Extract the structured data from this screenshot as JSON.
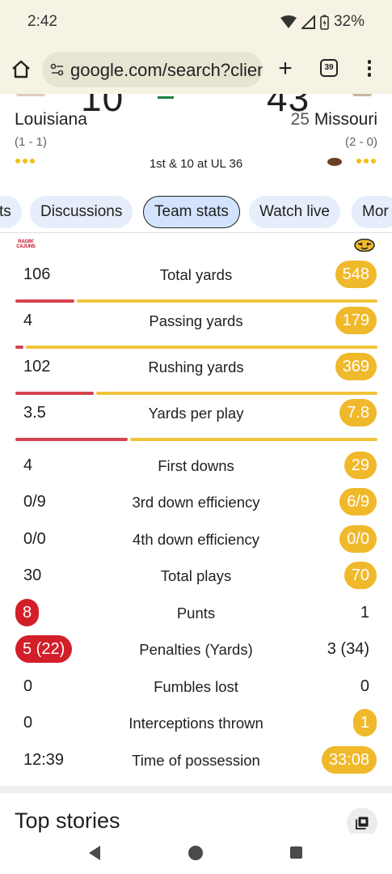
{
  "status_bar": {
    "time": "2:42",
    "battery": "32%"
  },
  "browser": {
    "url": "google.com/search?client",
    "tab_count": "39"
  },
  "scoreboard": {
    "home": {
      "name": "Louisiana",
      "record": "(1 - 1)",
      "score_partial": "10",
      "logo_text": "RAGIN' CAJUNS"
    },
    "away": {
      "rank": "25",
      "name": "Missouri",
      "record": "(2 - 0)",
      "score_partial": "43"
    },
    "situation": "1st & 10 at UL 36"
  },
  "tabs": [
    "ts",
    "Discussions",
    "Team stats",
    "Watch live",
    "Mor"
  ],
  "active_tab": "Team stats",
  "stats": [
    {
      "label": "Total yards",
      "left": "106",
      "right": "548",
      "highlight": "right",
      "bar_left_fraction": 0.162
    },
    {
      "label": "Passing yards",
      "left": "4",
      "right": "179",
      "highlight": "right",
      "bar_left_fraction": 0.022
    },
    {
      "label": "Rushing yards",
      "left": "102",
      "right": "369",
      "highlight": "right",
      "bar_left_fraction": 0.217
    },
    {
      "label": "Yards per play",
      "left": "3.5",
      "right": "7.8",
      "highlight": "right",
      "bar_left_fraction": 0.31
    },
    {
      "label": "First downs",
      "left": "4",
      "right": "29",
      "highlight": "right"
    },
    {
      "label": "3rd down efficiency",
      "left": "0/9",
      "right": "6/9",
      "highlight": "right"
    },
    {
      "label": "4th down efficiency",
      "left": "0/0",
      "right": "0/0",
      "highlight": "right"
    },
    {
      "label": "Total plays",
      "left": "30",
      "right": "70",
      "highlight": "right"
    },
    {
      "label": "Punts",
      "left": "8",
      "right": "1",
      "highlight": "left"
    },
    {
      "label": "Penalties (Yards)",
      "left": "5 (22)",
      "right": "3 (34)",
      "highlight": "left"
    },
    {
      "label": "Fumbles lost",
      "left": "0",
      "right": "0",
      "highlight": "none"
    },
    {
      "label": "Interceptions thrown",
      "left": "0",
      "right": "1",
      "highlight": "right"
    },
    {
      "label": "Time of possession",
      "left": "12:39",
      "right": "33:08",
      "highlight": "right"
    }
  ],
  "top_stories": {
    "title": "Top stories"
  },
  "colors": {
    "home_team": "#d4434f",
    "away_team": "#f0b92b",
    "away_bar": "#f0c33c",
    "chip_bg": "#e6eefb",
    "chip_active_bg": "#d3e3fd",
    "browser_chrome": "#f6f3e4"
  }
}
